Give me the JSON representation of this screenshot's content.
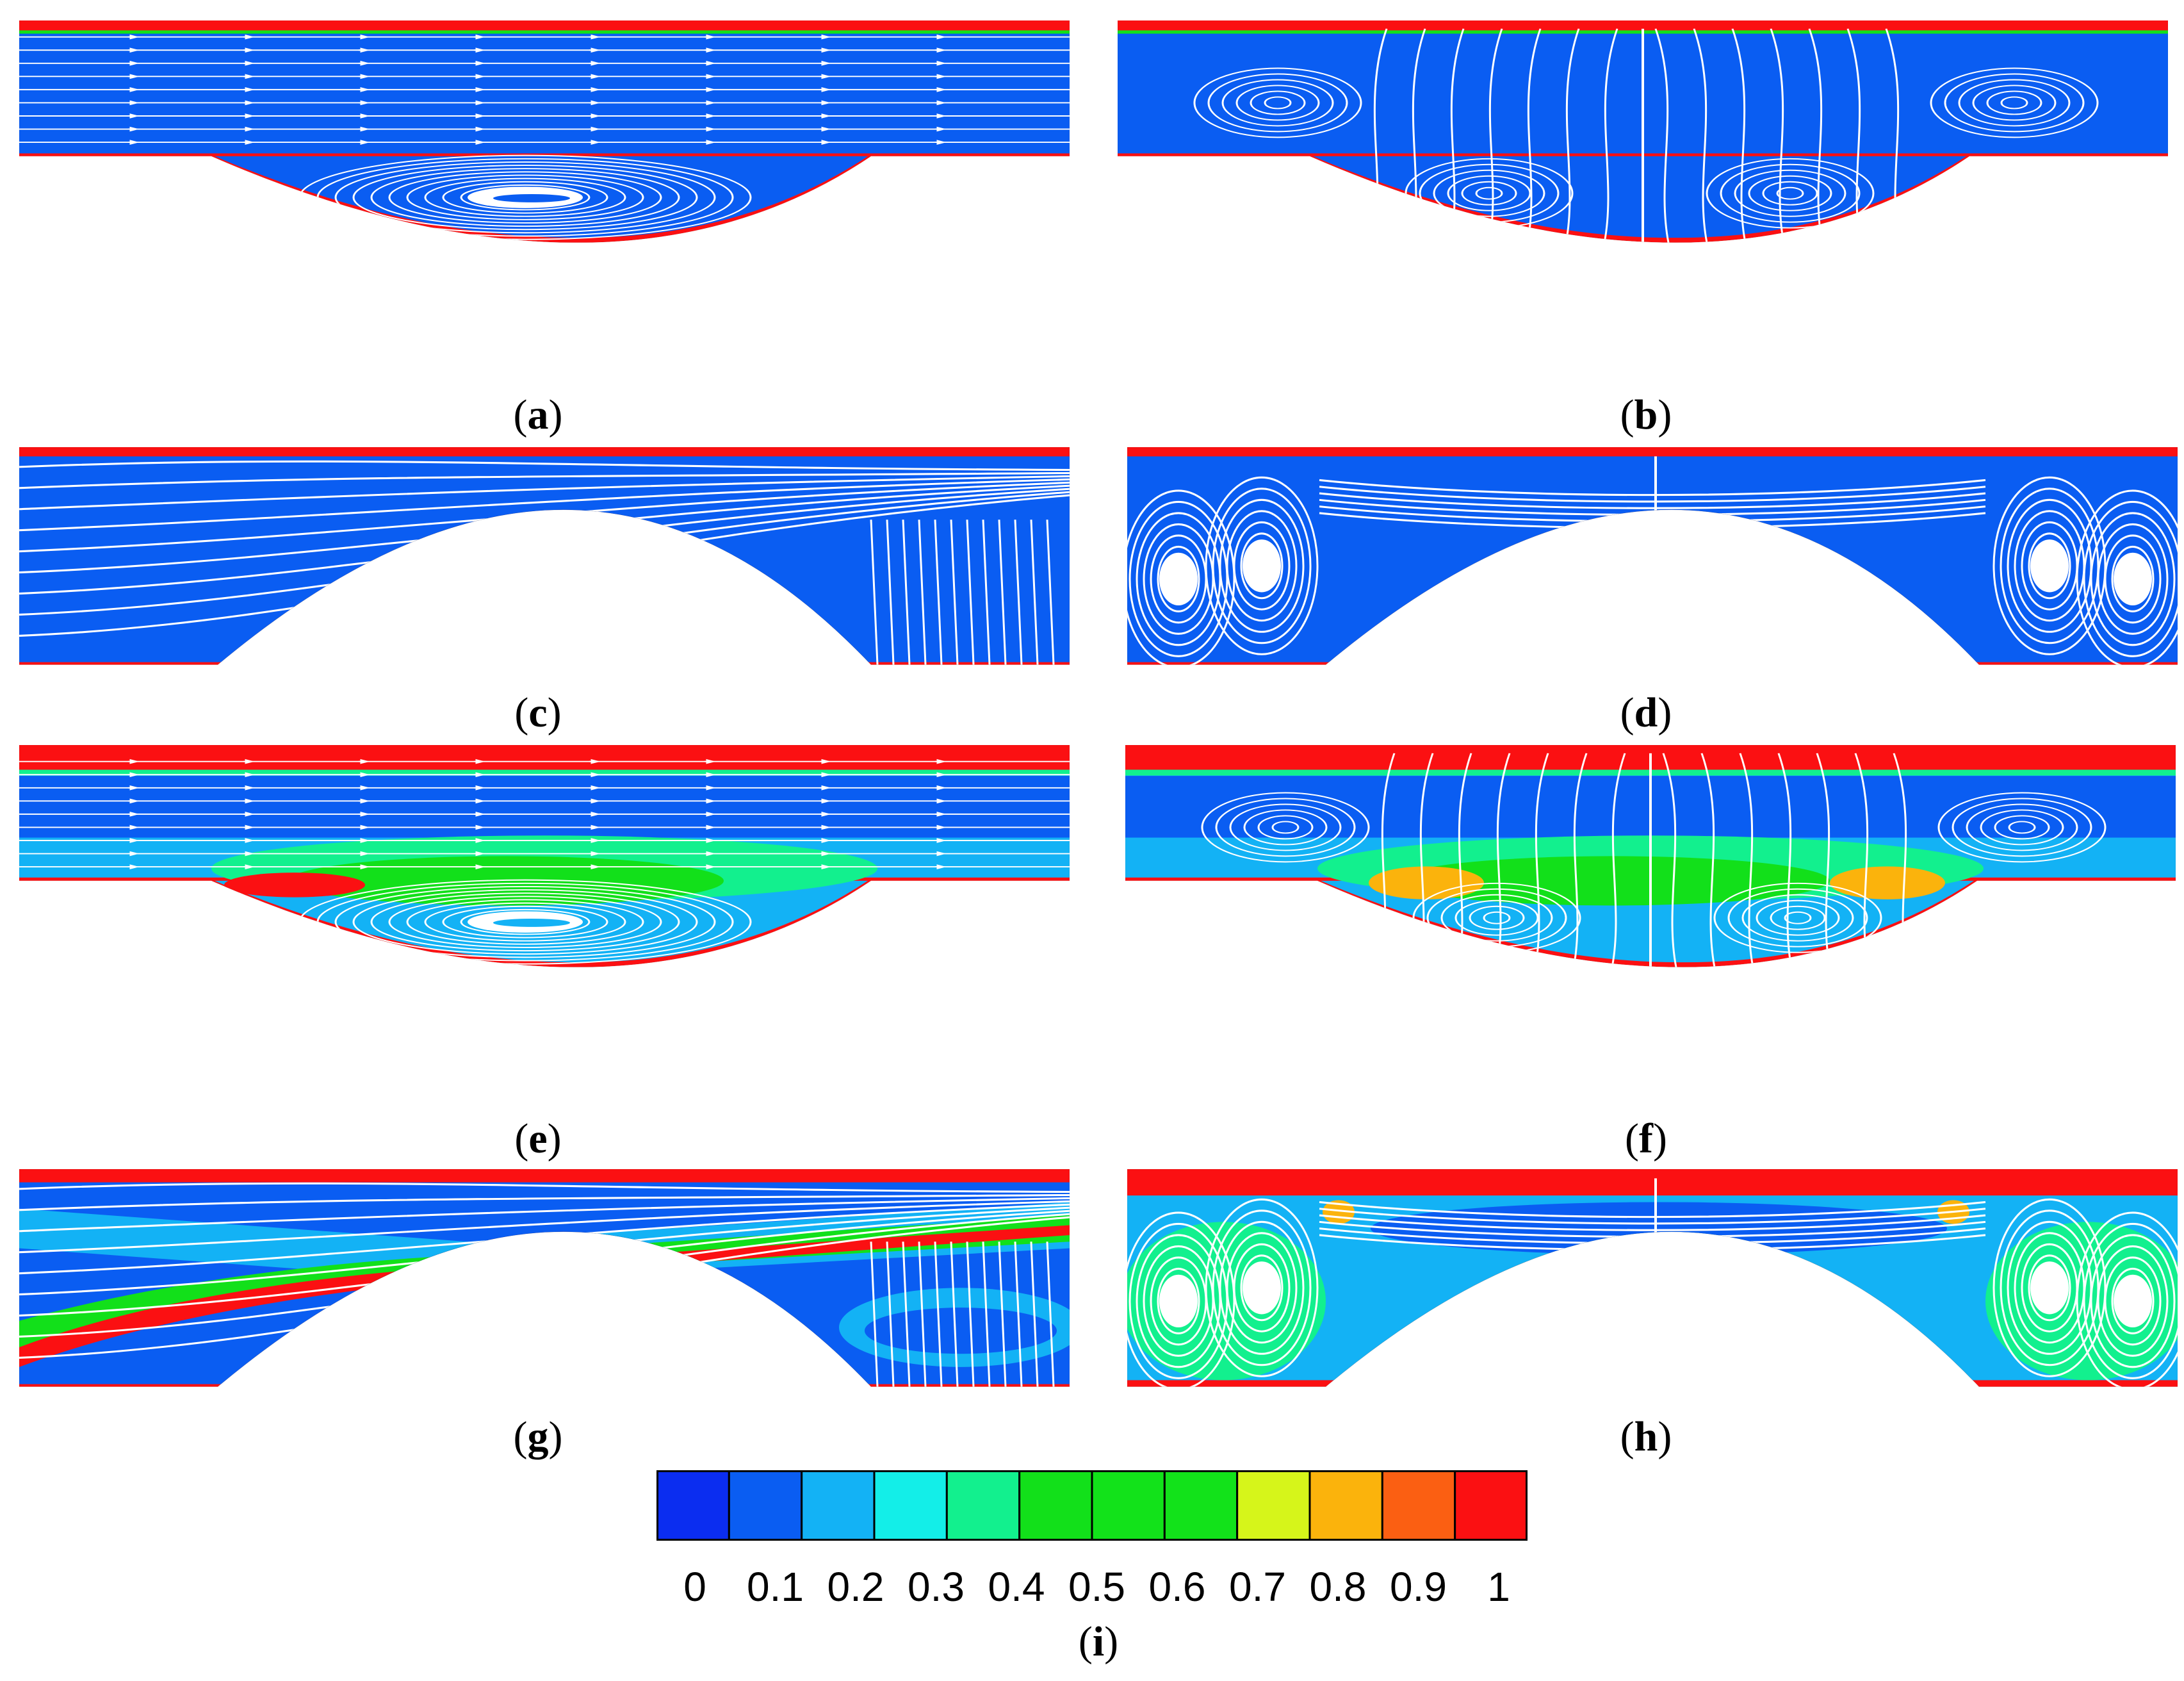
{
  "panels": [
    {
      "id": "a",
      "label": "a",
      "shape": "cavity",
      "scheme": "a"
    },
    {
      "id": "b",
      "label": "b",
      "shape": "cavity",
      "scheme": "b"
    },
    {
      "id": "c",
      "label": "c",
      "shape": "rib",
      "scheme": "c"
    },
    {
      "id": "d",
      "label": "d",
      "shape": "rib",
      "scheme": "d"
    },
    {
      "id": "e",
      "label": "e",
      "shape": "cavity",
      "scheme": "e"
    },
    {
      "id": "f",
      "label": "f",
      "shape": "cavity",
      "scheme": "f"
    },
    {
      "id": "g",
      "label": "g",
      "shape": "rib",
      "scheme": "g"
    },
    {
      "id": "h",
      "label": "h",
      "shape": "rib",
      "scheme": "h"
    }
  ],
  "colorbar": {
    "label": "i",
    "ticks": [
      "0",
      "0.1",
      "0.2",
      "0.3",
      "0.4",
      "0.5",
      "0.6",
      "0.7",
      "0.8",
      "0.9",
      "1"
    ],
    "colors": [
      "#0b2df0",
      "#0a5df2",
      "#13b2f5",
      "#13eee8",
      "#12f08e",
      "#12e01a",
      "#12e21a",
      "#12e21a",
      "#d6f51a",
      "#fbb30c",
      "#fb5f12",
      "#fb1012"
    ]
  },
  "colors": {
    "blue": "#0a5df2",
    "red": "#fb1012",
    "cyan": "#13b2f5",
    "green": "#12e01a",
    "lightgreen": "#12f08e",
    "yellow": "#d6f51a",
    "orange": "#fbb30c",
    "streamline": "#ffffff"
  }
}
